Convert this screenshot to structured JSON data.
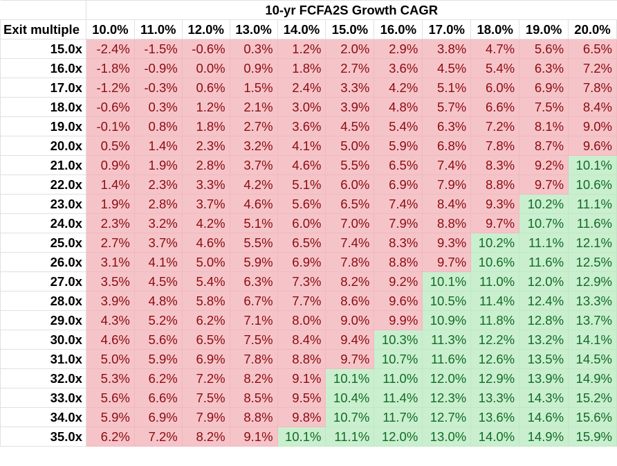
{
  "table": {
    "title": "10-yr FCFA2S Growth CAGR",
    "corner_label": "Exit multiple",
    "threshold": 10.0,
    "columns": [
      "10.0%",
      "11.0%",
      "12.0%",
      "13.0%",
      "14.0%",
      "15.0%",
      "16.0%",
      "17.0%",
      "18.0%",
      "19.0%",
      "20.0%"
    ],
    "rows": [
      {
        "label": "15.0x",
        "values": [
          "-2.4%",
          "-1.5%",
          "-0.6%",
          "0.3%",
          "1.2%",
          "2.0%",
          "2.9%",
          "3.8%",
          "4.7%",
          "5.6%",
          "6.5%"
        ]
      },
      {
        "label": "16.0x",
        "values": [
          "-1.8%",
          "-0.9%",
          "0.0%",
          "0.9%",
          "1.8%",
          "2.7%",
          "3.6%",
          "4.5%",
          "5.4%",
          "6.3%",
          "7.2%"
        ]
      },
      {
        "label": "17.0x",
        "values": [
          "-1.2%",
          "-0.3%",
          "0.6%",
          "1.5%",
          "2.4%",
          "3.3%",
          "4.2%",
          "5.1%",
          "6.0%",
          "6.9%",
          "7.8%"
        ]
      },
      {
        "label": "18.0x",
        "values": [
          "-0.6%",
          "0.3%",
          "1.2%",
          "2.1%",
          "3.0%",
          "3.9%",
          "4.8%",
          "5.7%",
          "6.6%",
          "7.5%",
          "8.4%"
        ]
      },
      {
        "label": "19.0x",
        "values": [
          "-0.1%",
          "0.8%",
          "1.8%",
          "2.7%",
          "3.6%",
          "4.5%",
          "5.4%",
          "6.3%",
          "7.2%",
          "8.1%",
          "9.0%"
        ]
      },
      {
        "label": "20.0x",
        "values": [
          "0.5%",
          "1.4%",
          "2.3%",
          "3.2%",
          "4.1%",
          "5.0%",
          "5.9%",
          "6.8%",
          "7.8%",
          "8.7%",
          "9.6%"
        ]
      },
      {
        "label": "21.0x",
        "values": [
          "0.9%",
          "1.9%",
          "2.8%",
          "3.7%",
          "4.6%",
          "5.5%",
          "6.5%",
          "7.4%",
          "8.3%",
          "9.2%",
          "10.1%"
        ]
      },
      {
        "label": "22.0x",
        "values": [
          "1.4%",
          "2.3%",
          "3.3%",
          "4.2%",
          "5.1%",
          "6.0%",
          "6.9%",
          "7.9%",
          "8.8%",
          "9.7%",
          "10.6%"
        ]
      },
      {
        "label": "23.0x",
        "values": [
          "1.9%",
          "2.8%",
          "3.7%",
          "4.6%",
          "5.6%",
          "6.5%",
          "7.4%",
          "8.4%",
          "9.3%",
          "10.2%",
          "11.1%"
        ]
      },
      {
        "label": "24.0x",
        "values": [
          "2.3%",
          "3.2%",
          "4.2%",
          "5.1%",
          "6.0%",
          "7.0%",
          "7.9%",
          "8.8%",
          "9.7%",
          "10.7%",
          "11.6%"
        ]
      },
      {
        "label": "25.0x",
        "values": [
          "2.7%",
          "3.7%",
          "4.6%",
          "5.5%",
          "6.5%",
          "7.4%",
          "8.3%",
          "9.3%",
          "10.2%",
          "11.1%",
          "12.1%"
        ]
      },
      {
        "label": "26.0x",
        "values": [
          "3.1%",
          "4.1%",
          "5.0%",
          "5.9%",
          "6.9%",
          "7.8%",
          "8.8%",
          "9.7%",
          "10.6%",
          "11.6%",
          "12.5%"
        ]
      },
      {
        "label": "27.0x",
        "values": [
          "3.5%",
          "4.5%",
          "5.4%",
          "6.3%",
          "7.3%",
          "8.2%",
          "9.2%",
          "10.1%",
          "11.0%",
          "12.0%",
          "12.9%"
        ]
      },
      {
        "label": "28.0x",
        "values": [
          "3.9%",
          "4.8%",
          "5.8%",
          "6.7%",
          "7.7%",
          "8.6%",
          "9.6%",
          "10.5%",
          "11.4%",
          "12.4%",
          "13.3%"
        ]
      },
      {
        "label": "29.0x",
        "values": [
          "4.3%",
          "5.2%",
          "6.2%",
          "7.1%",
          "8.0%",
          "9.0%",
          "9.9%",
          "10.9%",
          "11.8%",
          "12.8%",
          "13.7%"
        ]
      },
      {
        "label": "30.0x",
        "values": [
          "4.6%",
          "5.6%",
          "6.5%",
          "7.5%",
          "8.4%",
          "9.4%",
          "10.3%",
          "11.3%",
          "12.2%",
          "13.2%",
          "14.1%"
        ]
      },
      {
        "label": "31.0x",
        "values": [
          "5.0%",
          "5.9%",
          "6.9%",
          "7.8%",
          "8.8%",
          "9.7%",
          "10.7%",
          "11.6%",
          "12.6%",
          "13.5%",
          "14.5%"
        ]
      },
      {
        "label": "32.0x",
        "values": [
          "5.3%",
          "6.2%",
          "7.2%",
          "8.2%",
          "9.1%",
          "10.1%",
          "11.0%",
          "12.0%",
          "12.9%",
          "13.9%",
          "14.9%"
        ]
      },
      {
        "label": "33.0x",
        "values": [
          "5.6%",
          "6.6%",
          "7.5%",
          "8.5%",
          "9.5%",
          "10.4%",
          "11.4%",
          "12.3%",
          "13.3%",
          "14.3%",
          "15.2%"
        ]
      },
      {
        "label": "34.0x",
        "values": [
          "5.9%",
          "6.9%",
          "7.9%",
          "8.8%",
          "9.8%",
          "10.7%",
          "11.7%",
          "12.7%",
          "13.6%",
          "14.6%",
          "15.6%"
        ]
      },
      {
        "label": "35.0x",
        "values": [
          "6.2%",
          "7.2%",
          "8.2%",
          "9.1%",
          "10.1%",
          "11.1%",
          "12.0%",
          "13.0%",
          "14.0%",
          "14.9%",
          "15.9%"
        ]
      }
    ]
  },
  "colors": {
    "below_threshold_bg": "#f5c4c9",
    "below_threshold_text": "#8b0b10",
    "above_threshold_bg": "#c9efcf",
    "above_threshold_text": "#116b24"
  }
}
